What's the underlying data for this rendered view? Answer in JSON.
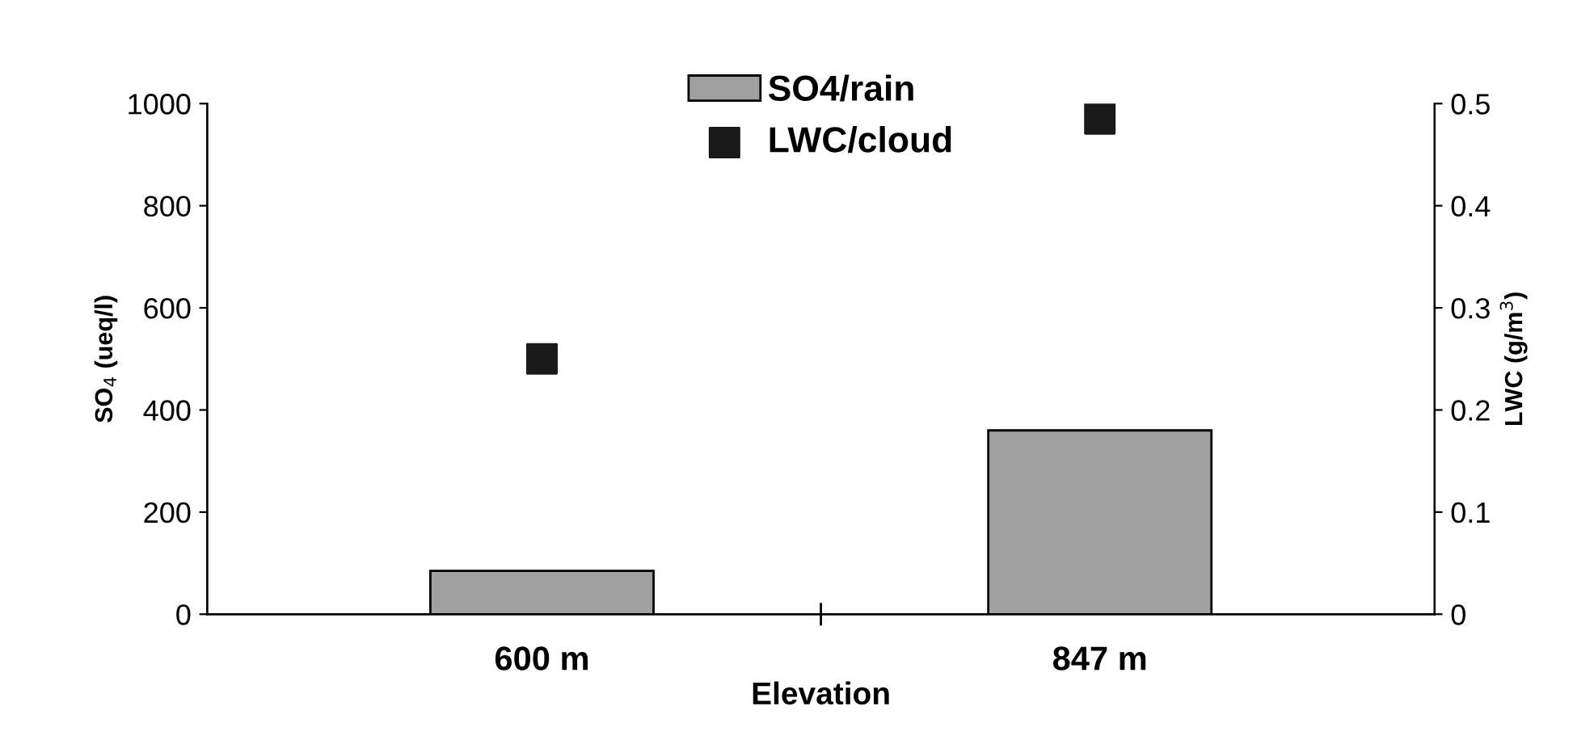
{
  "chart_data": {
    "type": "bar",
    "categories": [
      "600 m",
      "847 m"
    ],
    "xlabel": "Elevation",
    "ylabel": "SO$_{4}$ (ueq/l)",
    "y2label": "LWC (g/m$^{3}$)",
    "series": [
      {
        "name": "SO4/rain",
        "color": "#a0a0a0",
        "values": [
          85,
          360
        ]
      },
      {
        "name": "LWC/cloud",
        "type": "scatter",
        "axis": "y2",
        "color": "#1a1a1a",
        "marker": "square",
        "values": [
          0.25,
          0.485
        ]
      }
    ],
    "ylim": [
      0,
      1000
    ],
    "yticks": [
      0,
      200,
      400,
      600,
      800,
      1000
    ],
    "y2lim": [
      0,
      0.5
    ],
    "y2ticks": [
      0,
      0.1,
      0.2,
      0.3,
      0.4,
      0.5
    ],
    "legend": "top",
    "grid": false
  }
}
